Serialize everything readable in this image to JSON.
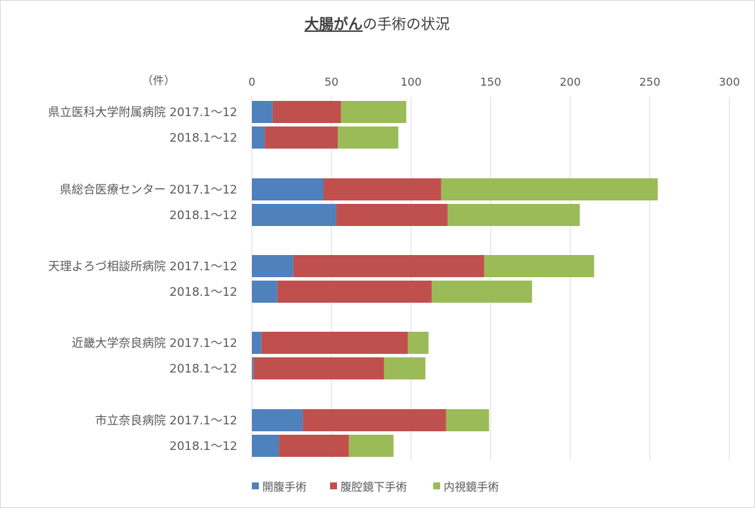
{
  "chart_data": {
    "type": "bar",
    "orientation": "horizontal",
    "stacked": true,
    "title_underlined": "大腸がん",
    "title_rest": "の手術の状況",
    "unit_label": "（件）",
    "xlim": [
      0,
      300
    ],
    "xticks": [
      0,
      50,
      100,
      150,
      200,
      250,
      300
    ],
    "grid": true,
    "legend_position": "bottom",
    "groups": [
      {
        "name": "県立医科大学附属病院",
        "rows": [
          "2017.1～12",
          "2018.1～12"
        ]
      },
      {
        "name": "県総合医療センター",
        "rows": [
          "2017.1～12",
          "2018.1～12"
        ]
      },
      {
        "name": "天理よろづ相談所病院",
        "rows": [
          "2017.1～12",
          "2018.1～12"
        ]
      },
      {
        "name": "近畿大学奈良病院",
        "rows": [
          "2017.1～12",
          "2018.1～12"
        ]
      },
      {
        "name": "市立奈良病院",
        "rows": [
          "2017.1～12",
          "2018.1～12"
        ]
      }
    ],
    "series": [
      {
        "name": "開腹手術",
        "color": "#4f81bd",
        "values": [
          13,
          8,
          45,
          53,
          26,
          16,
          6,
          1,
          32,
          17
        ]
      },
      {
        "name": "腹腔鏡下手術",
        "color": "#c0504d",
        "values": [
          43,
          46,
          74,
          70,
          120,
          97,
          92,
          82,
          90,
          44
        ]
      },
      {
        "name": "内視鏡手術",
        "color": "#9bbb59",
        "values": [
          41,
          38,
          136,
          83,
          69,
          63,
          13,
          26,
          27,
          28
        ]
      }
    ]
  }
}
